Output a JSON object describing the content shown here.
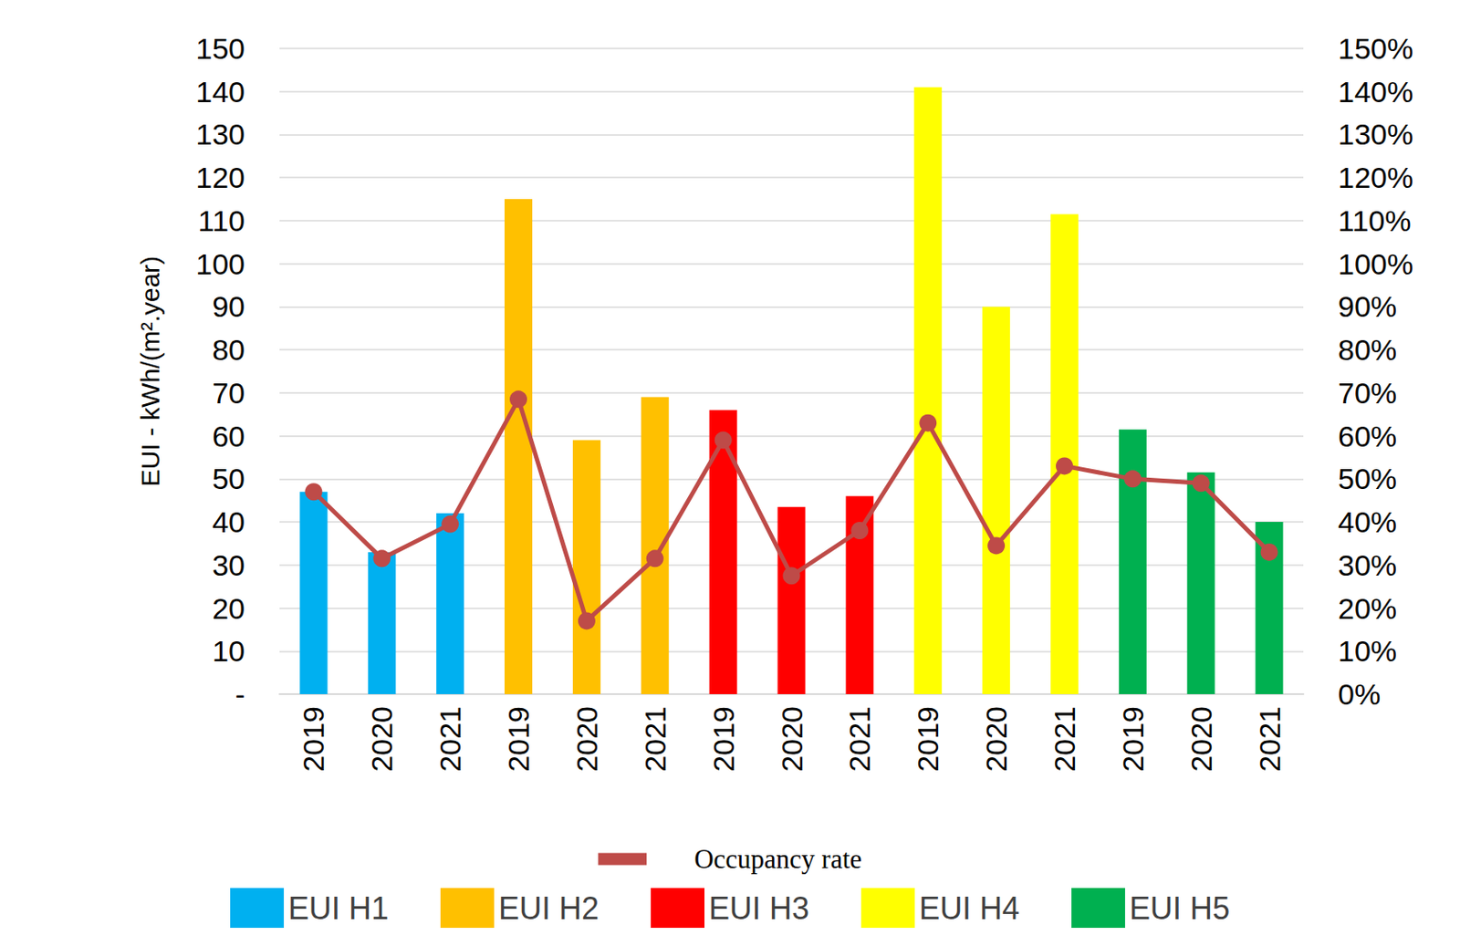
{
  "chart_data": {
    "type": "bar",
    "ylabel": "EUI - kWh/(m².year)",
    "categories": [
      "2019",
      "2020",
      "2021",
      "2019",
      "2020",
      "2021",
      "2019",
      "2020",
      "2021",
      "2019",
      "2020",
      "2021",
      "2019",
      "2020",
      "2021"
    ],
    "series": [
      {
        "name": "EUI H1",
        "color": "#00b0f0",
        "values": [
          47,
          33,
          42,
          null,
          null,
          null,
          null,
          null,
          null,
          null,
          null,
          null,
          null,
          null,
          null
        ]
      },
      {
        "name": "EUI H2",
        "color": "#ffc000",
        "values": [
          null,
          null,
          null,
          115,
          59,
          69,
          null,
          null,
          null,
          null,
          null,
          null,
          null,
          null,
          null
        ]
      },
      {
        "name": "EUI H3",
        "color": "#ff0000",
        "values": [
          null,
          null,
          null,
          null,
          null,
          null,
          66,
          43.5,
          46,
          null,
          null,
          null,
          null,
          null,
          null
        ]
      },
      {
        "name": "EUI H4",
        "color": "#ffff00",
        "values": [
          null,
          null,
          null,
          null,
          null,
          null,
          null,
          null,
          null,
          141,
          90,
          111.5,
          null,
          null,
          null
        ]
      },
      {
        "name": "EUI H5",
        "color": "#00b050",
        "values": [
          null,
          null,
          null,
          null,
          null,
          null,
          null,
          null,
          null,
          null,
          null,
          null,
          61.5,
          51.5,
          40
        ]
      },
      {
        "name": "Occupancy rate",
        "type": "line",
        "axis": "y2",
        "color": "#be4b48",
        "marker": "circle",
        "values": [
          47,
          31.5,
          39.5,
          68.5,
          17,
          31.5,
          59,
          27.5,
          38,
          63,
          34.5,
          53,
          50,
          49,
          33
        ]
      }
    ],
    "ylim": [
      0,
      150
    ],
    "yticks": [
      {
        "value": 0,
        "label": "-"
      },
      10,
      20,
      30,
      40,
      50,
      60,
      70,
      80,
      90,
      100,
      110,
      120,
      130,
      140,
      150
    ],
    "y2lim": [
      0,
      150
    ],
    "y2ticks": [
      {
        "value": 0,
        "label": "0%"
      },
      {
        "value": 10,
        "label": "10%"
      },
      {
        "value": 20,
        "label": "20%"
      },
      {
        "value": 30,
        "label": "30%"
      },
      {
        "value": 40,
        "label": "40%"
      },
      {
        "value": 50,
        "label": "50%"
      },
      {
        "value": 60,
        "label": "60%"
      },
      {
        "value": 70,
        "label": "70%"
      },
      {
        "value": 80,
        "label": "80%"
      },
      {
        "value": 90,
        "label": "90%"
      },
      {
        "value": 100,
        "label": "100%"
      },
      {
        "value": 110,
        "label": "110%"
      },
      {
        "value": 120,
        "label": "120%"
      },
      {
        "value": 130,
        "label": "130%"
      },
      {
        "value": 140,
        "label": "140%"
      },
      {
        "value": 150,
        "label": "150%"
      }
    ],
    "grid": true,
    "legend": "bottom"
  }
}
